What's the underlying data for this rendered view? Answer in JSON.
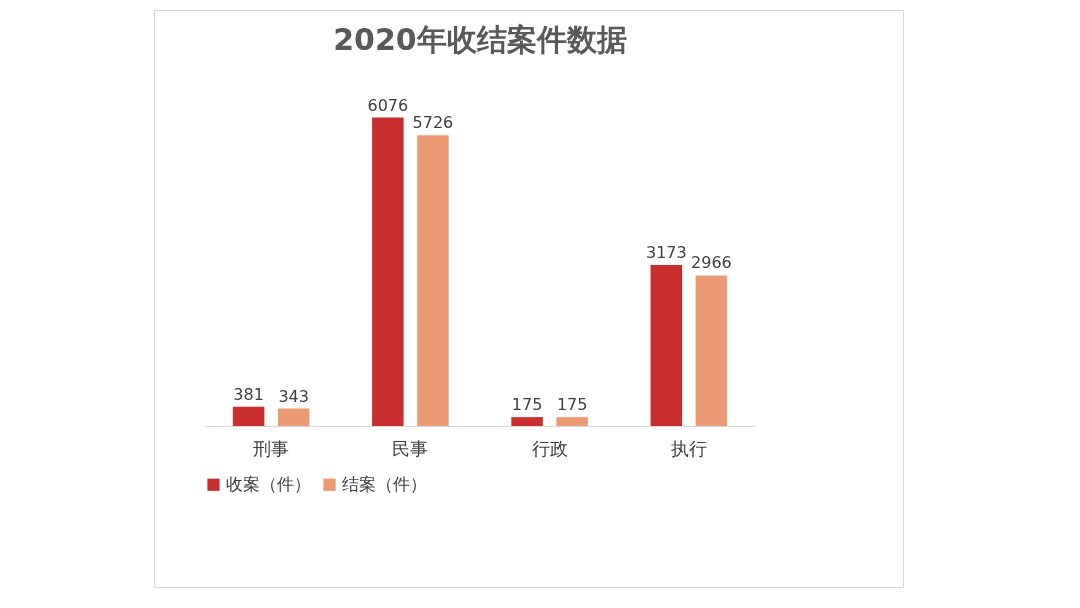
{
  "chart_data": {
    "type": "bar",
    "title": "2020年收结案件数据",
    "categories": [
      "刑事",
      "民事",
      "行政",
      "执行"
    ],
    "series": [
      {
        "name": "收案（件）",
        "color": "#c92e2e",
        "values": [
          381,
          6076,
          175,
          3173
        ]
      },
      {
        "name": "结案（件）",
        "color": "#ec9a74",
        "values": [
          343,
          5726,
          175,
          2966
        ]
      }
    ],
    "data_labels": true,
    "legend": "bottom"
  }
}
